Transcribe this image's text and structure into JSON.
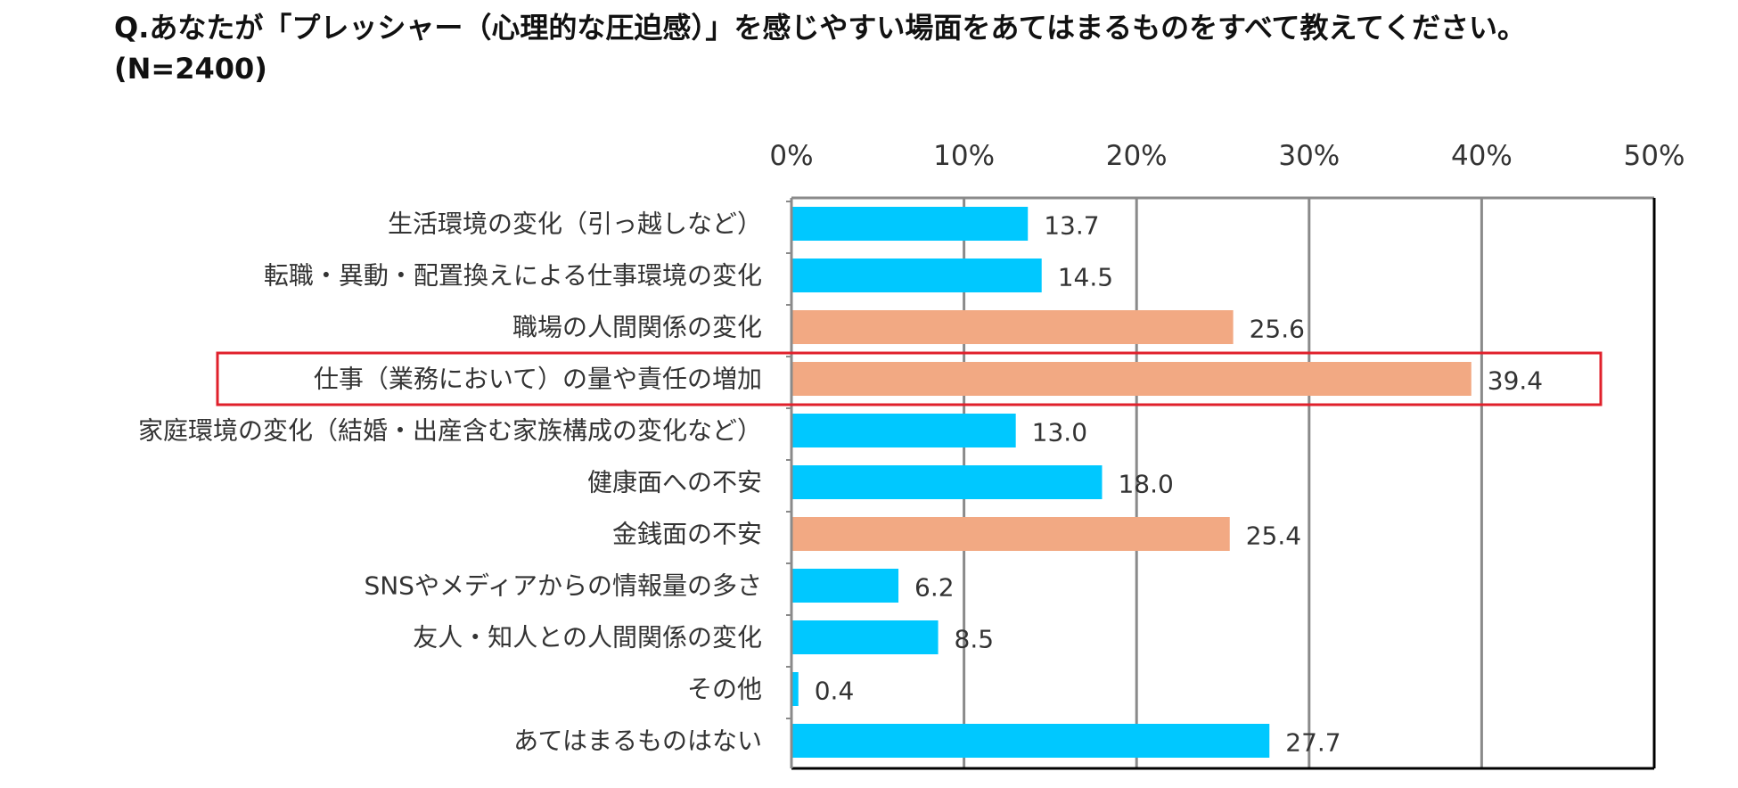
{
  "question": {
    "line1": "Q.あなたが「プレッシャー（心理的な圧迫感）」を感じやすい場面をあてはまるものをすべて教えてください。",
    "line2": "(N=2400)"
  },
  "colors": {
    "blue": "#00c8ff",
    "orange": "#f2a983",
    "grid": "#8a8a8a",
    "highlight": "#e0202b"
  },
  "chart_data": {
    "type": "bar",
    "orientation": "horizontal",
    "title": "Q.あなたが「プレッシャー（心理的な圧迫感）」を感じやすい場面をあてはまるものをすべて教えてください。(N=2400)",
    "xlim": [
      0,
      50
    ],
    "ticks": [
      "0%",
      "10%",
      "20%",
      "30%",
      "40%",
      "50%"
    ],
    "tick_values": [
      0,
      10,
      20,
      30,
      40,
      50
    ],
    "categories": [
      "生活環境の変化（引っ越しなど）",
      "転職・異動・配置換えによる仕事環境の変化",
      "職場の人間関係の変化",
      "仕事（業務において）の量や責任の増加",
      "家庭環境の変化（結婚・出産含む家族構成の変化など）",
      "健康面への不安",
      "金銭面の不安",
      "SNSやメディアからの情報量の多さ",
      "友人・知人との人間関係の変化",
      "その他",
      "あてはまるものはない"
    ],
    "values": [
      13.7,
      14.5,
      25.6,
      39.4,
      13.0,
      18.0,
      25.4,
      6.2,
      8.5,
      0.4,
      27.7
    ],
    "value_labels": [
      "13.7",
      "14.5",
      "25.6",
      "39.4",
      "13.0",
      "18.0",
      "25.4",
      "6.2",
      "8.5",
      "0.4",
      "27.7"
    ],
    "bar_colors": [
      "blue",
      "blue",
      "orange",
      "orange",
      "blue",
      "blue",
      "orange",
      "blue",
      "blue",
      "blue",
      "blue"
    ],
    "highlighted": "仕事（業務において）の量や責任の増加"
  }
}
